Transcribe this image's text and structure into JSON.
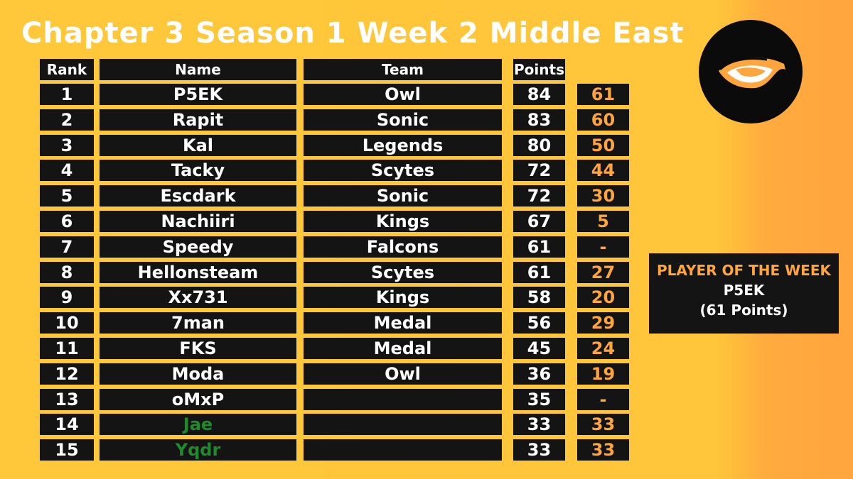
{
  "title": "Chapter 3 Season 1 Week 2 Middle East",
  "logo": {
    "icon": "eye-logo-icon"
  },
  "headers": {
    "rank": "Rank",
    "name": "Name",
    "team": "Team",
    "points": "Points"
  },
  "rows": [
    {
      "rank": "1",
      "name": "P5EK",
      "team": "Owl",
      "points": "84",
      "extra": "61"
    },
    {
      "rank": "2",
      "name": "Rapit",
      "team": "Sonic",
      "points": "83",
      "extra": "60"
    },
    {
      "rank": "3",
      "name": "Kal",
      "team": "Legends",
      "points": "80",
      "extra": "50"
    },
    {
      "rank": "4",
      "name": "Tacky",
      "team": "Scytes",
      "points": "72",
      "extra": "44"
    },
    {
      "rank": "5",
      "name": "Escdark",
      "team": "Sonic",
      "points": "72",
      "extra": "30"
    },
    {
      "rank": "6",
      "name": "Nachiiri",
      "team": "Kings",
      "points": "67",
      "extra": "5"
    },
    {
      "rank": "7",
      "name": "Speedy",
      "team": "Falcons",
      "points": "61",
      "extra": "-"
    },
    {
      "rank": "8",
      "name": "Hellonsteam",
      "team": "Scytes",
      "points": "61",
      "extra": "27"
    },
    {
      "rank": "9",
      "name": "Xx731",
      "team": "Kings",
      "points": "58",
      "extra": "20"
    },
    {
      "rank": "10",
      "name": "7man",
      "team": "Medal",
      "points": "56",
      "extra": "29"
    },
    {
      "rank": "11",
      "name": "FKS",
      "team": "Medal",
      "points": "45",
      "extra": "24"
    },
    {
      "rank": "12",
      "name": "Moda",
      "team": "Owl",
      "points": "36",
      "extra": "19"
    },
    {
      "rank": "13",
      "name": "oMxP",
      "team": "",
      "points": "35",
      "extra": "-"
    },
    {
      "rank": "14",
      "name": "Jae",
      "team": "",
      "points": "33",
      "extra": "33",
      "name_color": "#1f8a2c"
    },
    {
      "rank": "15",
      "name": "Yqdr",
      "team": "",
      "points": "33",
      "extra": "33",
      "name_color": "#1f8a2c"
    }
  ],
  "player_of_week": {
    "heading": "PLAYER OF THE WEEK",
    "name": "P5EK",
    "points": "(61 Points)"
  },
  "colors": {
    "background": "#ffc53b",
    "cell": "#141414",
    "accent": "#ffa53e",
    "green": "#1f8a2c"
  }
}
